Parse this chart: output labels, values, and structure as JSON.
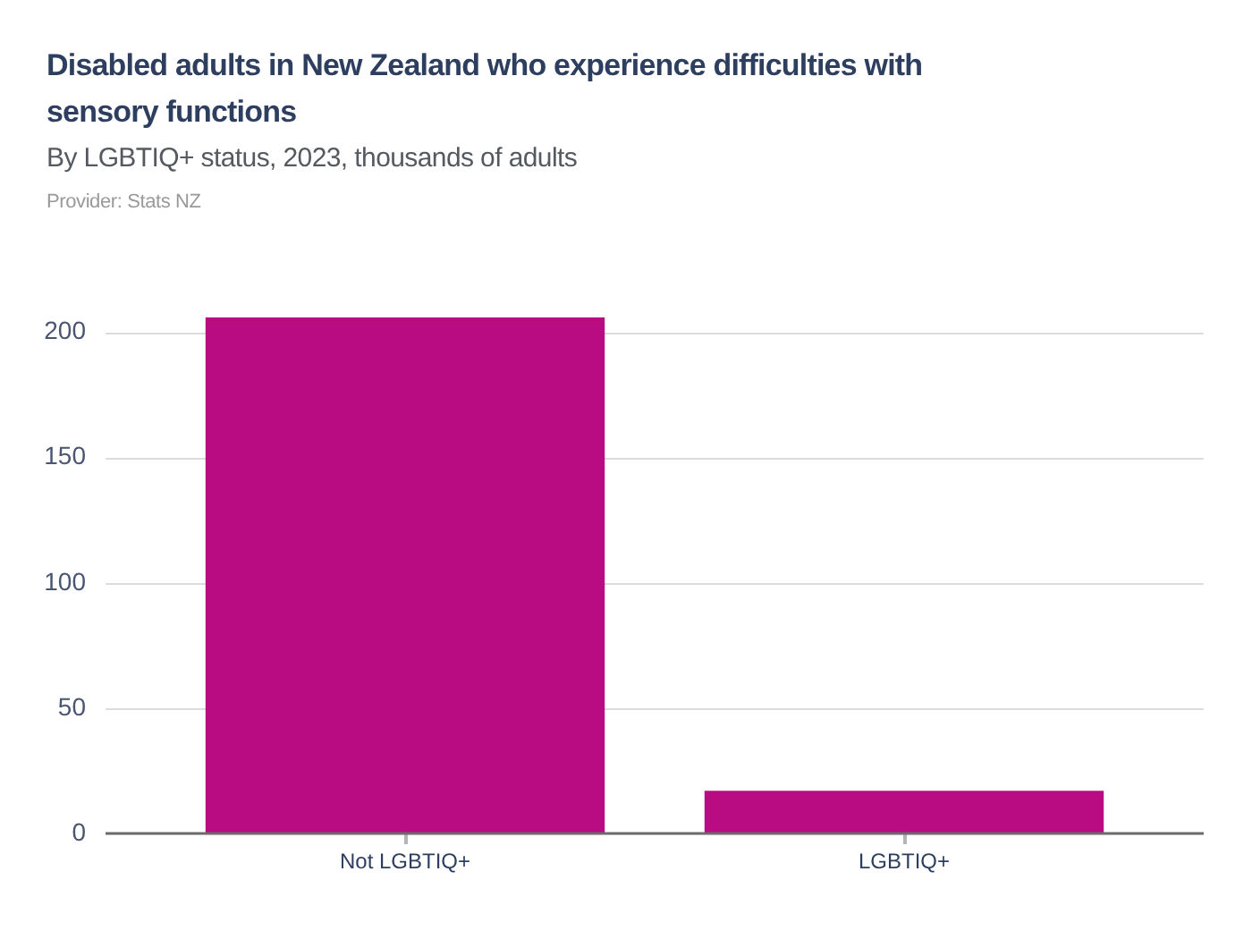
{
  "chart_data": {
    "type": "bar",
    "title": "Disabled adults in New Zealand who experience difficulties with sensory functions",
    "subtitle": "By LGBTIQ+ status, 2023, thousands of adults",
    "annotations": [
      "Provider: Stats NZ"
    ],
    "categories": [
      "Not LGBTIQ+",
      "LGBTIQ+"
    ],
    "values": [
      206,
      17
    ],
    "color": "#b90c82",
    "ylim": [
      0,
      206
    ],
    "yticks": [
      0,
      50,
      100,
      150,
      200
    ],
    "grid": "y"
  }
}
